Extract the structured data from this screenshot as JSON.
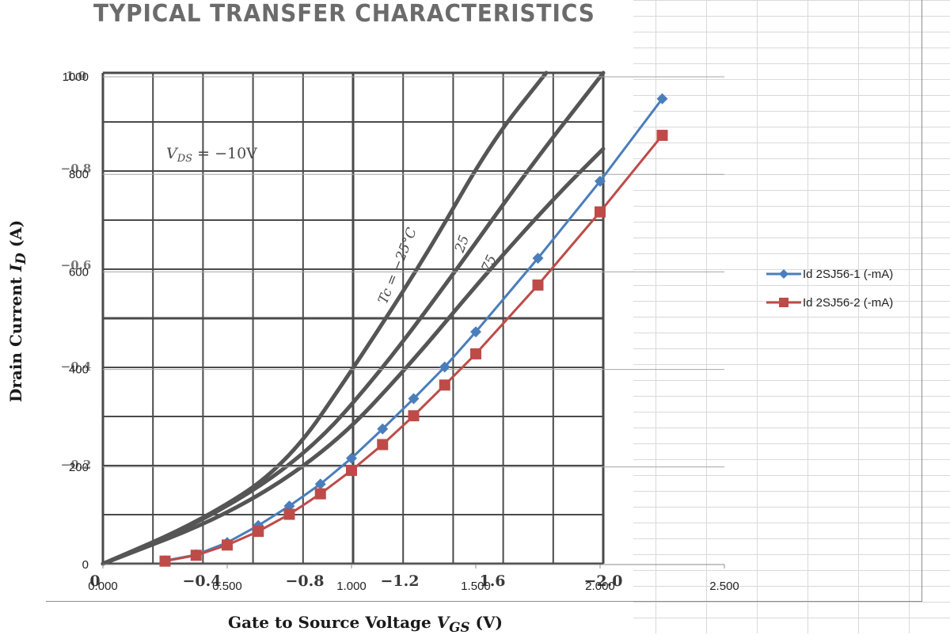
{
  "photo": {
    "title": "TYPICAL TRANSFER CHARACTERISTICS",
    "ylabel_prefix": "Drain Current ",
    "ylabel_symbol": "I",
    "ylabel_sub": "D",
    "ylabel_unit": " (A)",
    "xlabel_prefix": "Gate to Source Voltage ",
    "xlabel_symbol": "V",
    "xlabel_sub": "GS",
    "xlabel_unit": " (V)",
    "vds_label": "V",
    "vds_sub": "DS",
    "vds_value": " = −10V",
    "curve_labels": [
      "Tc = −25°C",
      "25",
      "75"
    ],
    "x_ticks": [
      "0",
      "−0.4",
      "−0.8",
      "−1.2",
      "1.6",
      "−2.0"
    ],
    "y_ticks": [
      "1.0",
      "−0.8",
      "−0.6",
      "−0.4",
      "−0.2"
    ],
    "curve_color": "#555555",
    "grid_color": "#4a4a4a"
  },
  "chart_data": {
    "type": "line",
    "title": "",
    "xlabel": "",
    "ylabel": "",
    "xlim": [
      0,
      2.5
    ],
    "ylim": [
      0,
      1000
    ],
    "x_ticks": [
      "0.000",
      "0.500",
      "1.000",
      "1.500",
      "2.000",
      "2.500"
    ],
    "y_ticks": [
      "0",
      "200",
      "400",
      "600",
      "800",
      "1000"
    ],
    "grid": "horizontal",
    "legend_position": "right",
    "series": [
      {
        "name": "Id 2SJ56-1 (-mA)",
        "color": "#4a7ebb",
        "marker": "diamond",
        "x": [
          0.25,
          0.375,
          0.5,
          0.625,
          0.75,
          0.875,
          1.0,
          1.125,
          1.25,
          1.375,
          1.5,
          1.75,
          2.0,
          2.25
        ],
        "y": [
          8,
          20,
          45,
          80,
          120,
          165,
          218,
          278,
          340,
          405,
          477,
          628,
          786,
          955
        ]
      },
      {
        "name": "Id 2SJ56-2 (-mA)",
        "color": "#be4b48",
        "marker": "square",
        "x": [
          0.25,
          0.375,
          0.5,
          0.625,
          0.75,
          0.875,
          1.0,
          1.125,
          1.25,
          1.375,
          1.5,
          1.75,
          2.0,
          2.25
        ],
        "y": [
          7,
          19,
          40,
          68,
          103,
          145,
          193,
          246,
          305,
          368,
          432,
          573,
          723,
          880
        ]
      }
    ]
  }
}
